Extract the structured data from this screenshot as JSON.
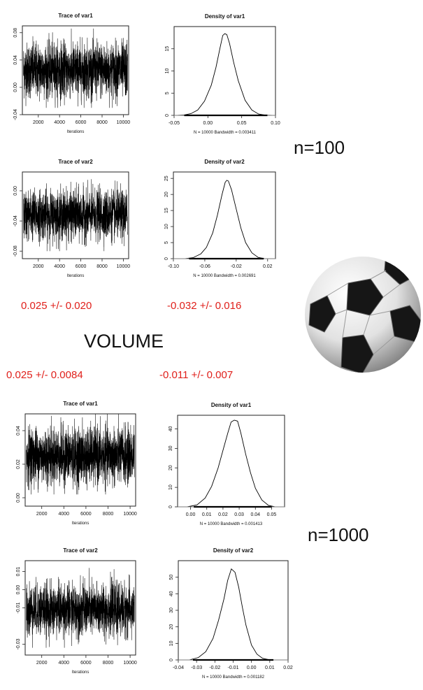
{
  "chart_data": [
    {
      "type": "line",
      "kind": "trace",
      "group": "n100",
      "title": "Trace of var1",
      "xlabel": "Iterations",
      "xlim": [
        500,
        10500
      ],
      "ylim": [
        -0.04,
        0.09
      ],
      "xticks": [
        2000,
        4000,
        6000,
        8000,
        10000
      ],
      "yticks": [
        -0.04,
        0.0,
        0.04,
        0.08
      ],
      "ytick_labels": [
        "-0.04",
        "0.00",
        "0.04",
        "0.08"
      ],
      "series_summary": {
        "n": 10000,
        "mean": 0.025,
        "sd": 0.02,
        "min": -0.03,
        "max": 0.086
      }
    },
    {
      "type": "line",
      "kind": "density",
      "group": "n100",
      "title": "Density of var1",
      "xlabel": "N = 10000   Bandwidth = 0.003411",
      "xlim": [
        -0.05,
        0.1
      ],
      "ylim": [
        0,
        20
      ],
      "xticks": [
        -0.05,
        0.0,
        0.05,
        0.1
      ],
      "xtick_labels": [
        "-0.05",
        "0.00",
        "0.05",
        "0.10"
      ],
      "yticks": [
        0,
        5,
        10,
        15
      ],
      "ytick_labels": [
        "0",
        "5",
        "10",
        "15"
      ],
      "x": [
        -0.045,
        -0.035,
        -0.025,
        -0.015,
        -0.005,
        0.005,
        0.012,
        0.018,
        0.022,
        0.025,
        0.028,
        0.032,
        0.038,
        0.045,
        0.055,
        0.065,
        0.075,
        0.085,
        0.095
      ],
      "y": [
        0.0,
        0.1,
        0.4,
        1.2,
        3.2,
        6.8,
        10.8,
        15.2,
        18.0,
        18.4,
        18.2,
        16.2,
        12.0,
        7.8,
        3.4,
        1.2,
        0.3,
        0.05,
        0.0
      ],
      "rug_range": [
        -0.035,
        0.088
      ]
    },
    {
      "type": "line",
      "kind": "trace",
      "group": "n100",
      "title": "Trace of var2",
      "xlabel": "Iterations",
      "xlim": [
        500,
        10500
      ],
      "ylim": [
        -0.09,
        0.025
      ],
      "xticks": [
        2000,
        4000,
        6000,
        8000,
        10000
      ],
      "yticks": [
        -0.08,
        -0.04,
        0.0
      ],
      "ytick_labels": [
        "-0.08",
        "-0.04",
        "0.00"
      ],
      "series_summary": {
        "n": 10000,
        "mean": -0.032,
        "sd": 0.016,
        "min": -0.08,
        "max": 0.018
      }
    },
    {
      "type": "line",
      "kind": "density",
      "group": "n100",
      "title": "Density of var2",
      "xlabel": "N = 10000   Bandwidth = 0.002691",
      "xlim": [
        -0.1,
        0.03
      ],
      "ylim": [
        0,
        27
      ],
      "xticks": [
        -0.1,
        -0.06,
        -0.02,
        0.02
      ],
      "xtick_labels": [
        "-0.10",
        "-0.06",
        "-0.02",
        "0.02"
      ],
      "yticks": [
        0,
        5,
        10,
        15,
        20,
        25
      ],
      "ytick_labels": [
        "0",
        "5",
        "10",
        "15",
        "20",
        "25"
      ],
      "x": [
        -0.085,
        -0.075,
        -0.065,
        -0.058,
        -0.05,
        -0.044,
        -0.038,
        -0.034,
        -0.032,
        -0.03,
        -0.026,
        -0.02,
        -0.014,
        -0.008,
        0.0,
        0.008,
        0.016
      ],
      "y": [
        0.0,
        0.3,
        1.5,
        3.5,
        8.0,
        13.5,
        20.0,
        23.8,
        24.4,
        24.2,
        21.5,
        15.5,
        9.5,
        5.0,
        1.8,
        0.4,
        0.0
      ],
      "rug_range": [
        -0.08,
        0.015
      ]
    },
    {
      "type": "line",
      "kind": "trace",
      "group": "n1000",
      "title": "Trace of var1",
      "xlabel": "Iterations",
      "xlim": [
        500,
        10500
      ],
      "ylim": [
        -0.005,
        0.05
      ],
      "xticks": [
        2000,
        4000,
        6000,
        8000,
        10000
      ],
      "yticks": [
        0.0,
        0.02,
        0.04
      ],
      "ytick_labels": [
        "0.00",
        "0.02",
        "0.04"
      ],
      "series_summary": {
        "n": 10000,
        "mean": 0.025,
        "sd": 0.0084,
        "min": 0.002,
        "max": 0.05
      }
    },
    {
      "type": "line",
      "kind": "density",
      "group": "n1000",
      "title": "Density of var1",
      "xlabel": "N = 10000   Bandwidth = 0.001413",
      "xlim": [
        -0.008,
        0.058
      ],
      "ylim": [
        0,
        47
      ],
      "xticks": [
        0.0,
        0.01,
        0.02,
        0.03,
        0.04,
        0.05
      ],
      "xtick_labels": [
        "0.00",
        "0.01",
        "0.02",
        "0.03",
        "0.04",
        "0.05"
      ],
      "yticks": [
        0,
        10,
        20,
        30,
        40
      ],
      "ytick_labels": [
        "0",
        "10",
        "20",
        "30",
        "40"
      ],
      "x": [
        -0.002,
        0.004,
        0.009,
        0.013,
        0.017,
        0.02,
        0.023,
        0.025,
        0.027,
        0.029,
        0.031,
        0.034,
        0.037,
        0.04,
        0.044,
        0.048,
        0.052
      ],
      "y": [
        0.0,
        1.0,
        4.5,
        10.5,
        20.0,
        29.0,
        38.0,
        43.5,
        44.5,
        44.0,
        38.0,
        27.0,
        17.5,
        9.5,
        3.5,
        0.8,
        0.0
      ],
      "rug_range": [
        0.002,
        0.05
      ]
    },
    {
      "type": "line",
      "kind": "trace",
      "group": "n1000",
      "title": "Trace of var2",
      "xlabel": "Iterations",
      "xlim": [
        500,
        10500
      ],
      "ylim": [
        -0.036,
        0.016
      ],
      "xticks": [
        2000,
        4000,
        6000,
        8000,
        10000
      ],
      "yticks": [
        -0.03,
        -0.01,
        0.0,
        0.01
      ],
      "ytick_labels": [
        "-0.03",
        "-0.01",
        "0.00",
        "0.01"
      ],
      "series_summary": {
        "n": 10000,
        "mean": -0.011,
        "sd": 0.007,
        "min": -0.032,
        "max": 0.012
      }
    },
    {
      "type": "line",
      "kind": "density",
      "group": "n1000",
      "title": "Density of var2",
      "xlabel": "N = 10000   Bandwidth = 0.001182",
      "xlim": [
        -0.04,
        0.02
      ],
      "ylim": [
        0,
        60
      ],
      "xticks": [
        -0.04,
        -0.03,
        -0.02,
        -0.01,
        0.0,
        0.01,
        0.02
      ],
      "xtick_labels": [
        "-0.04",
        "-0.03",
        "-0.02",
        "-0.01",
        "0.00",
        "0.01",
        "0.02"
      ],
      "yticks": [
        0,
        10,
        20,
        30,
        40,
        50
      ],
      "ytick_labels": [
        "0",
        "10",
        "20",
        "30",
        "40",
        "50"
      ],
      "x": [
        -0.034,
        -0.029,
        -0.025,
        -0.021,
        -0.018,
        -0.015,
        -0.013,
        -0.011,
        -0.009,
        -0.007,
        -0.005,
        -0.003,
        0.0,
        0.003,
        0.006,
        0.01
      ],
      "y": [
        0.0,
        1.5,
        5.0,
        13.0,
        24.0,
        37.0,
        48.0,
        55.0,
        53.0,
        44.0,
        32.0,
        21.0,
        9.0,
        3.5,
        1.0,
        0.0
      ],
      "rug_range": [
        -0.032,
        0.012
      ]
    }
  ],
  "annotations": {
    "n100_label": "n=100",
    "n1000_label": "n=1000",
    "volume_label": "VOLUME",
    "est_n100_var1": "0.025 +/-  0.020",
    "est_n100_var2": "-0.032 +/-  0.016",
    "est_n1000_var1": "0.025 +/-  0.0084",
    "est_n1000_var2": "-0.011 +/-  0.007",
    "text_color": "#e0201b"
  },
  "image": {
    "subject": "soccer-ball"
  }
}
